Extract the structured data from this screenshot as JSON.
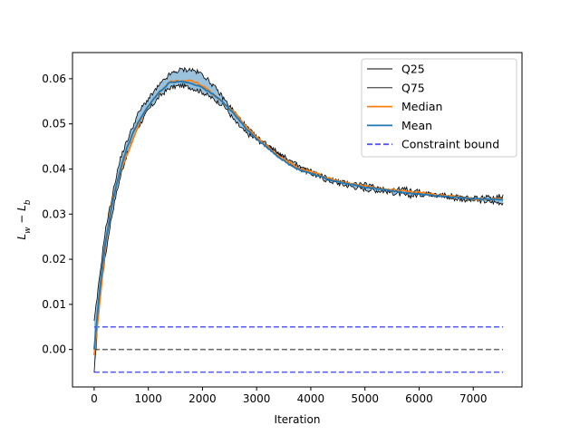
{
  "chart_data": {
    "type": "line",
    "xlabel": "Iteration",
    "ylabel_main": "L",
    "ylabel_sub1": "w",
    "ylabel_sep": " − ",
    "ylabel_sub2": "b",
    "xlim": [
      -400,
      7900
    ],
    "ylim": [
      -0.0083,
      0.0658
    ],
    "x_ticks": [
      0,
      1000,
      2000,
      3000,
      4000,
      5000,
      6000,
      7000
    ],
    "y_ticks": [
      0.0,
      0.01,
      0.02,
      0.03,
      0.04,
      0.05,
      0.06
    ],
    "x_tick_labels": [
      "0",
      "1000",
      "2000",
      "3000",
      "4000",
      "5000",
      "6000",
      "7000"
    ],
    "y_tick_labels": [
      "0.00",
      "0.01",
      "0.02",
      "0.03",
      "0.04",
      "0.05",
      "0.06"
    ],
    "grid": false,
    "legend_position": "top-right",
    "legend": [
      {
        "label": "Q25",
        "color": "#000000",
        "style": "solid-thin"
      },
      {
        "label": "Q75",
        "color": "#000000",
        "style": "solid-thin"
      },
      {
        "label": "Median",
        "color": "#ff7f0e",
        "style": "solid"
      },
      {
        "label": "Mean",
        "color": "#1f77b4",
        "style": "solid"
      },
      {
        "label": "Constraint bound",
        "color": "#5555ff",
        "style": "dashed"
      }
    ],
    "band_color": "#1f77b4",
    "x": [
      0,
      100,
      200,
      300,
      400,
      500,
      600,
      700,
      800,
      900,
      1000,
      1200,
      1400,
      1600,
      1800,
      2000,
      2200,
      2400,
      2600,
      2800,
      3000,
      3200,
      3400,
      3600,
      3800,
      4000,
      4300,
      4600,
      5000,
      5400,
      5800,
      6200,
      6600,
      7000,
      7550
    ],
    "series": [
      {
        "name": "Q25",
        "values": [
          -0.0055,
          0.012,
          0.02,
          0.028,
          0.034,
          0.039,
          0.043,
          0.046,
          0.049,
          0.051,
          0.053,
          0.056,
          0.058,
          0.0585,
          0.058,
          0.057,
          0.0555,
          0.054,
          0.0505,
          0.048,
          0.0465,
          0.045,
          0.0435,
          0.0415,
          0.04,
          0.039,
          0.0375,
          0.0365,
          0.0355,
          0.035,
          0.034,
          0.0345,
          0.0335,
          0.033,
          0.0325
        ]
      },
      {
        "name": "Q75",
        "values": [
          0.006,
          0.016,
          0.026,
          0.032,
          0.038,
          0.043,
          0.046,
          0.049,
          0.052,
          0.054,
          0.0555,
          0.0585,
          0.061,
          0.062,
          0.062,
          0.061,
          0.0585,
          0.0555,
          0.0525,
          0.0495,
          0.047,
          0.0455,
          0.0435,
          0.042,
          0.0405,
          0.0395,
          0.038,
          0.037,
          0.0365,
          0.0355,
          0.0355,
          0.0345,
          0.034,
          0.0335,
          0.034
        ]
      },
      {
        "name": "Median",
        "values": [
          -0.0012,
          0.01,
          0.022,
          0.031,
          0.036,
          0.04,
          0.043,
          0.046,
          0.049,
          0.052,
          0.054,
          0.057,
          0.0593,
          0.0595,
          0.0595,
          0.0585,
          0.0565,
          0.0545,
          0.0525,
          0.0495,
          0.047,
          0.045,
          0.043,
          0.0415,
          0.04,
          0.0395,
          0.038,
          0.037,
          0.0362,
          0.0355,
          0.035,
          0.0345,
          0.034,
          0.0333,
          0.0333
        ]
      },
      {
        "name": "Mean",
        "values": [
          0.0,
          0.013,
          0.023,
          0.03,
          0.036,
          0.0405,
          0.0445,
          0.0475,
          0.05,
          0.052,
          0.054,
          0.057,
          0.0592,
          0.0594,
          0.059,
          0.058,
          0.0565,
          0.0545,
          0.052,
          0.049,
          0.0467,
          0.0447,
          0.0427,
          0.041,
          0.0398,
          0.039,
          0.0378,
          0.0369,
          0.036,
          0.0353,
          0.0347,
          0.0342,
          0.0338,
          0.0334,
          0.0332
        ]
      }
    ],
    "hlines": [
      {
        "y": 0.005,
        "color": "#5555ff",
        "style": "dashed",
        "x_range": [
          0,
          7550
        ]
      },
      {
        "y": -0.005,
        "color": "#5555ff",
        "style": "dashed",
        "x_range": [
          0,
          7550
        ]
      },
      {
        "y": 0.0,
        "color": "#666666",
        "style": "dashed",
        "x_range": [
          0,
          7550
        ]
      }
    ]
  }
}
